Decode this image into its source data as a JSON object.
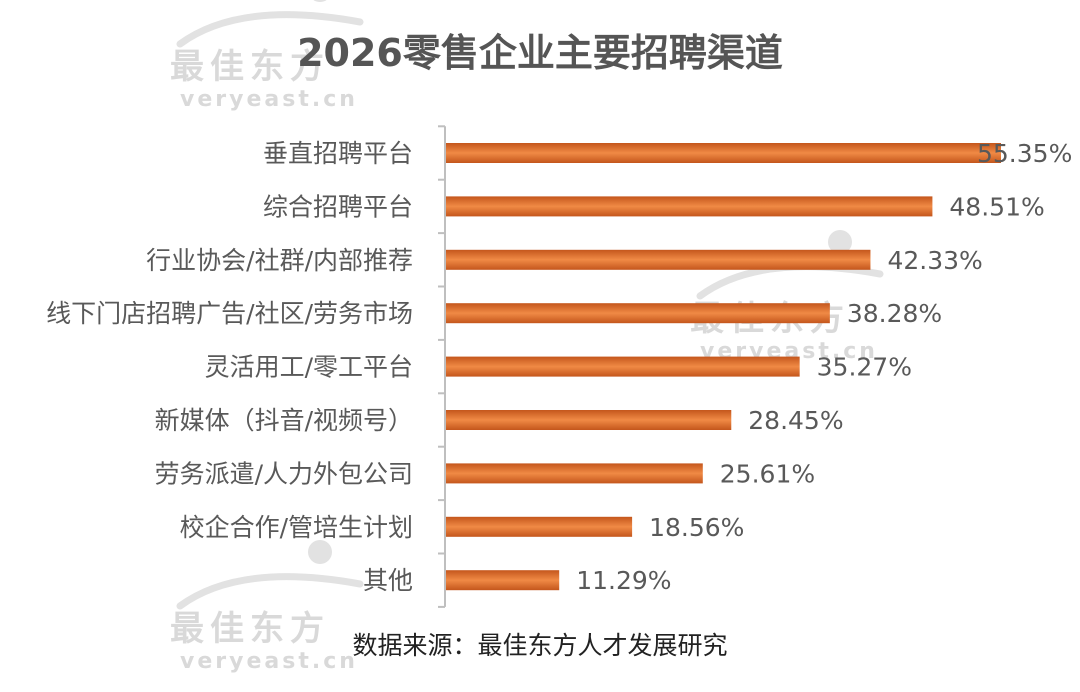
{
  "watermark": {
    "cn": "最佳东方",
    "en": "veryeast.cn"
  },
  "source": "数据来源：最佳东方人才发展研究",
  "colors": {
    "bar_dark": "#c4561c",
    "bar_light": "#f08a45",
    "axis": "#bfbfbf",
    "text": "#595959"
  },
  "chart_data": {
    "type": "bar",
    "orientation": "horizontal",
    "title": "2026零售企业主要招聘渠道",
    "categories": [
      "垂直招聘平台",
      "综合招聘平台",
      "行业协会/社群/内部推荐",
      "线下门店招聘广告/社区/劳务市场",
      "灵活用工/零工平台",
      "新媒体（抖音/视频号）",
      "劳务派遣/人力外包公司",
      "校企合作/管培生计划",
      "其他"
    ],
    "values": [
      55.35,
      48.51,
      42.33,
      38.28,
      35.27,
      28.45,
      25.61,
      18.56,
      11.29
    ],
    "value_labels": [
      "55.35%",
      "48.51%",
      "42.33%",
      "38.28%",
      "35.27%",
      "28.45%",
      "25.61%",
      "18.56%",
      "11.29%"
    ],
    "xlim": [
      0,
      60
    ],
    "unit": "%",
    "grid": false,
    "legend": "none"
  }
}
